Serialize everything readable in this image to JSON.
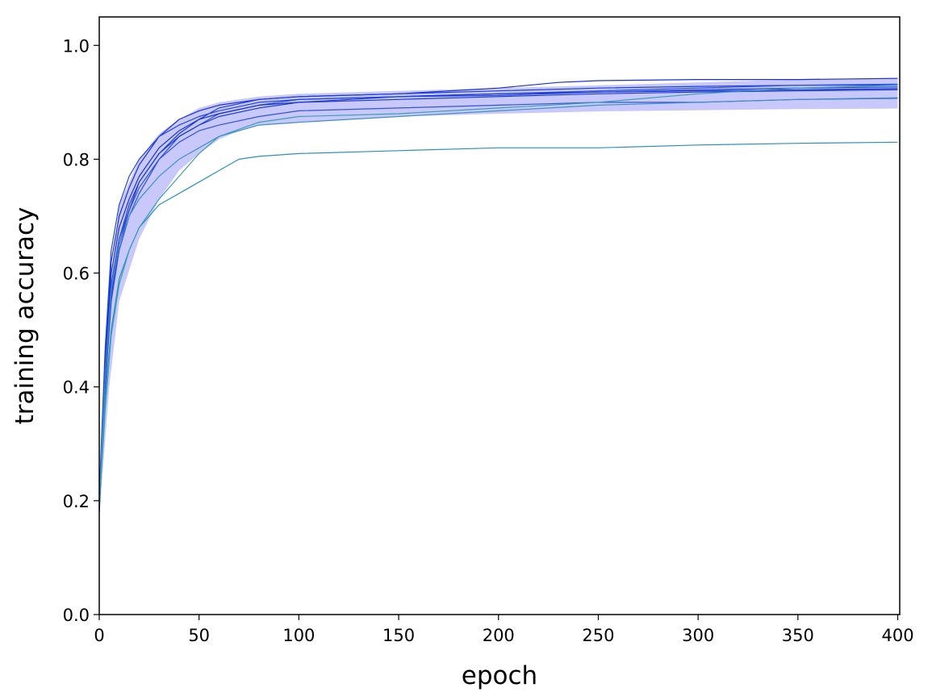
{
  "chart_data": {
    "type": "line",
    "title": "",
    "xlabel": "epoch",
    "ylabel": "training accuracy",
    "xlim": [
      0,
      401
    ],
    "ylim": [
      0,
      1.05
    ],
    "xticks": [
      0,
      50,
      100,
      150,
      200,
      250,
      300,
      350,
      400
    ],
    "yticks": [
      0.0,
      0.2,
      0.4,
      0.6,
      0.8,
      1.0
    ],
    "xtick_labels": [
      "0",
      "50",
      "100",
      "150",
      "200",
      "250",
      "300",
      "350",
      "400"
    ],
    "ytick_labels": [
      "0.0",
      "0.2",
      "0.4",
      "0.6",
      "0.8",
      "1.0"
    ],
    "grid": false,
    "band": {
      "color": "#c8c8fa",
      "x": [
        0,
        5,
        10,
        20,
        30,
        40,
        50,
        60,
        70,
        80,
        100,
        150,
        200,
        250,
        300,
        350,
        400
      ],
      "lower": [
        0.17,
        0.4,
        0.55,
        0.66,
        0.73,
        0.78,
        0.81,
        0.835,
        0.85,
        0.86,
        0.865,
        0.875,
        0.88,
        0.884,
        0.886,
        0.888,
        0.889
      ],
      "upper": [
        0.23,
        0.56,
        0.72,
        0.8,
        0.845,
        0.87,
        0.89,
        0.9,
        0.905,
        0.91,
        0.915,
        0.92,
        0.925,
        0.93,
        0.935,
        0.94,
        0.943
      ]
    },
    "series": [
      {
        "color": "#1a2fd6",
        "x": [
          0,
          3,
          6,
          10,
          15,
          20,
          30,
          40,
          50,
          60,
          80,
          100,
          150,
          200,
          230,
          250,
          300,
          350,
          400
        ],
        "y": [
          0.2,
          0.45,
          0.62,
          0.7,
          0.75,
          0.79,
          0.84,
          0.87,
          0.885,
          0.895,
          0.905,
          0.91,
          0.915,
          0.925,
          0.935,
          0.938,
          0.94,
          0.94,
          0.942
        ]
      },
      {
        "color": "#1c40d8",
        "x": [
          0,
          3,
          6,
          10,
          15,
          20,
          30,
          40,
          50,
          60,
          80,
          100,
          150,
          200,
          250,
          300,
          350,
          400
        ],
        "y": [
          0.19,
          0.42,
          0.58,
          0.66,
          0.72,
          0.76,
          0.81,
          0.845,
          0.87,
          0.89,
          0.905,
          0.91,
          0.915,
          0.92,
          0.925,
          0.928,
          0.93,
          0.93
        ]
      },
      {
        "color": "#2a50dc",
        "x": [
          0,
          3,
          6,
          10,
          15,
          20,
          30,
          40,
          50,
          60,
          80,
          100,
          150,
          200,
          250,
          300,
          350,
          400
        ],
        "y": [
          0.18,
          0.4,
          0.55,
          0.64,
          0.7,
          0.74,
          0.8,
          0.84,
          0.86,
          0.88,
          0.895,
          0.905,
          0.91,
          0.915,
          0.92,
          0.925,
          0.93,
          0.932
        ]
      },
      {
        "color": "#1734c9",
        "x": [
          0,
          3,
          6,
          10,
          15,
          20,
          30,
          40,
          50,
          60,
          80,
          100,
          150,
          200,
          250,
          300,
          350,
          400
        ],
        "y": [
          0.2,
          0.44,
          0.6,
          0.68,
          0.73,
          0.77,
          0.82,
          0.85,
          0.87,
          0.88,
          0.895,
          0.9,
          0.91,
          0.915,
          0.918,
          0.92,
          0.922,
          0.924
        ]
      },
      {
        "color": "#2247e0",
        "x": [
          0,
          3,
          6,
          10,
          15,
          20,
          30,
          40,
          50,
          60,
          80,
          100,
          150,
          200,
          250,
          300,
          350,
          400
        ],
        "y": [
          0.21,
          0.47,
          0.64,
          0.72,
          0.77,
          0.8,
          0.84,
          0.86,
          0.875,
          0.885,
          0.9,
          0.905,
          0.91,
          0.912,
          0.918,
          0.922,
          0.925,
          0.927
        ]
      },
      {
        "color": "#3355d4",
        "x": [
          0,
          3,
          6,
          10,
          15,
          20,
          30,
          40,
          50,
          60,
          80,
          100,
          150,
          200,
          250,
          300,
          350,
          400
        ],
        "y": [
          0.19,
          0.42,
          0.58,
          0.66,
          0.71,
          0.75,
          0.8,
          0.83,
          0.85,
          0.86,
          0.875,
          0.885,
          0.89,
          0.895,
          0.9,
          0.9,
          0.905,
          0.907
        ]
      },
      {
        "color": "#1f3fc7",
        "x": [
          0,
          3,
          6,
          10,
          15,
          20,
          30,
          40,
          50,
          60,
          80,
          100,
          150,
          200,
          250,
          300,
          350,
          400
        ],
        "y": [
          0.18,
          0.4,
          0.56,
          0.65,
          0.71,
          0.76,
          0.81,
          0.84,
          0.86,
          0.875,
          0.89,
          0.9,
          0.905,
          0.91,
          0.915,
          0.918,
          0.92,
          0.922
        ]
      },
      {
        "color": "#2c8fc0",
        "x": [
          0,
          3,
          6,
          10,
          15,
          20,
          30,
          40,
          50,
          60,
          70,
          80,
          100,
          150,
          200,
          250,
          300,
          350,
          400
        ],
        "y": [
          0.2,
          0.38,
          0.5,
          0.59,
          0.64,
          0.68,
          0.72,
          0.74,
          0.76,
          0.78,
          0.8,
          0.805,
          0.81,
          0.815,
          0.82,
          0.82,
          0.825,
          0.828,
          0.83
        ]
      },
      {
        "color": "#3aa0b0",
        "x": [
          0,
          3,
          6,
          10,
          15,
          20,
          30,
          40,
          50,
          60,
          80,
          100,
          150,
          200,
          250,
          300,
          350,
          400
        ],
        "y": [
          0.19,
          0.36,
          0.49,
          0.58,
          0.64,
          0.68,
          0.73,
          0.77,
          0.81,
          0.84,
          0.865,
          0.875,
          0.88,
          0.89,
          0.9,
          0.915,
          0.925,
          0.93
        ]
      },
      {
        "color": "#3f8fc8",
        "x": [
          0,
          3,
          6,
          10,
          15,
          20,
          30,
          40,
          50,
          60,
          80,
          100,
          150,
          200,
          250,
          300,
          350,
          400
        ],
        "y": [
          0.2,
          0.42,
          0.57,
          0.65,
          0.7,
          0.73,
          0.77,
          0.8,
          0.82,
          0.84,
          0.86,
          0.865,
          0.875,
          0.885,
          0.895,
          0.9,
          0.905,
          0.908
        ]
      }
    ]
  }
}
